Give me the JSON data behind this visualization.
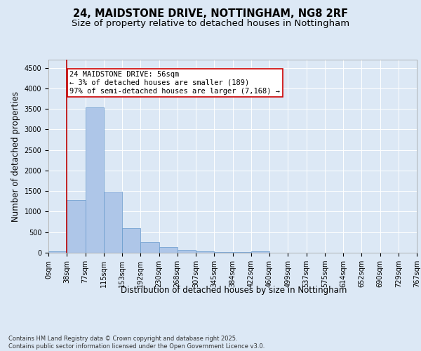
{
  "title_line1": "24, MAIDSTONE DRIVE, NOTTINGHAM, NG8 2RF",
  "title_line2": "Size of property relative to detached houses in Nottingham",
  "xlabel": "Distribution of detached houses by size in Nottingham",
  "ylabel": "Number of detached properties",
  "bar_values": [
    30,
    1280,
    3530,
    1490,
    600,
    260,
    130,
    75,
    40,
    20,
    10,
    30,
    0,
    0,
    0,
    0,
    0,
    0,
    0,
    0
  ],
  "bin_labels": [
    "0sqm",
    "38sqm",
    "77sqm",
    "115sqm",
    "153sqm",
    "192sqm",
    "230sqm",
    "268sqm",
    "307sqm",
    "345sqm",
    "384sqm",
    "422sqm",
    "460sqm",
    "499sqm",
    "537sqm",
    "575sqm",
    "614sqm",
    "652sqm",
    "690sqm",
    "729sqm",
    "767sqm"
  ],
  "bar_color": "#aec6e8",
  "bar_edge_color": "#6699cc",
  "vline_x": 1,
  "vline_color": "#bb0000",
  "annotation_text": "24 MAIDSTONE DRIVE: 56sqm\n← 3% of detached houses are smaller (189)\n97% of semi-detached houses are larger (7,168) →",
  "annotation_box_color": "#ffffff",
  "annotation_box_edge": "#cc0000",
  "ylim": [
    0,
    4700
  ],
  "yticks": [
    0,
    500,
    1000,
    1500,
    2000,
    2500,
    3000,
    3500,
    4000,
    4500
  ],
  "bg_color": "#dce8f5",
  "plot_bg_color": "#dce8f5",
  "footer_text": "Contains HM Land Registry data © Crown copyright and database right 2025.\nContains public sector information licensed under the Open Government Licence v3.0.",
  "title_fontsize": 10.5,
  "subtitle_fontsize": 9.5,
  "axis_label_fontsize": 8.5,
  "tick_fontsize": 7,
  "annotation_fontsize": 7.5,
  "footer_fontsize": 6
}
